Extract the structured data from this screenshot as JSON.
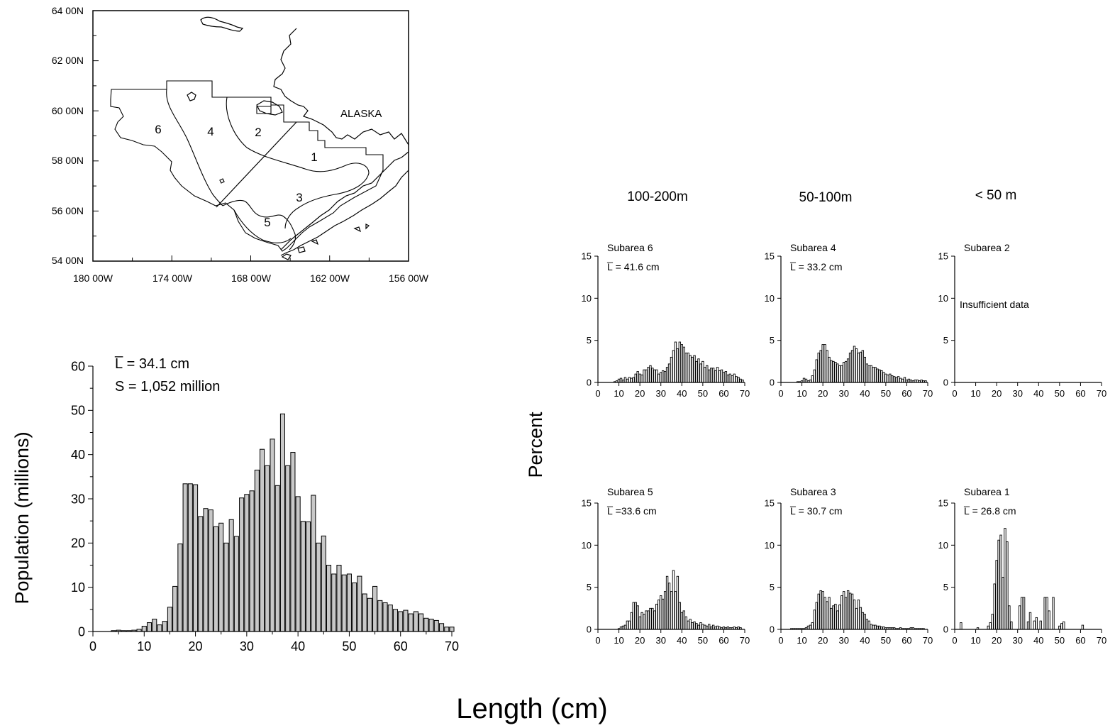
{
  "map": {
    "lat_labels": [
      "64 00N",
      "62 00N",
      "60 00N",
      "58 00N",
      "56 00N",
      "54 00N"
    ],
    "lon_labels": [
      "180 00W",
      "174 00W",
      "168 00W",
      "162 00W",
      "156 00W"
    ],
    "place_label": "ALASKA",
    "subarea_numbers": [
      "1",
      "2",
      "3",
      "4",
      "5",
      "6"
    ]
  },
  "main_chart": {
    "ylabel": "Population (millions)",
    "mean_label": "L̅ = 34.1 cm",
    "sum_label": "S = 1,052  million"
  },
  "depth_headers": [
    "100-200m",
    "50-100m",
    "< 50 m"
  ],
  "small_ylabel": "Percent",
  "xlabel": "Length (cm)",
  "panels": [
    {
      "title": "Subarea 6",
      "note": "L̅ = 41.6 cm"
    },
    {
      "title": "Subarea 4",
      "note": "L̅ = 33.2 cm"
    },
    {
      "title": "Subarea 2",
      "note": "Insufficient data"
    },
    {
      "title": "Subarea 5",
      "note": "L̅ =33.6  cm"
    },
    {
      "title": "Subarea 3",
      "note": "L̅ = 30.7 cm"
    },
    {
      "title": "Subarea 1",
      "note": "L̅ = 26.8 cm"
    }
  ],
  "colors": {
    "bar_fill": "#c8c8c8",
    "bar_stroke": "#000000",
    "small_bar_fill": "#ffffff"
  },
  "chart_data": [
    {
      "type": "bar",
      "title": "",
      "xlabel": "Length (cm)",
      "ylabel": "Population (millions)",
      "xlim": [
        0,
        70
      ],
      "ylim": [
        0,
        60
      ],
      "xticks": [
        0,
        10,
        20,
        30,
        40,
        50,
        60,
        70
      ],
      "yticks": [
        0,
        10,
        20,
        30,
        40,
        50,
        60
      ],
      "x": [
        4,
        5,
        6,
        7,
        8,
        9,
        10,
        11,
        12,
        13,
        14,
        15,
        16,
        17,
        18,
        19,
        20,
        21,
        22,
        23,
        24,
        25,
        26,
        27,
        28,
        29,
        30,
        31,
        32,
        33,
        34,
        35,
        36,
        37,
        38,
        39,
        40,
        41,
        42,
        43,
        44,
        45,
        46,
        47,
        48,
        49,
        50,
        51,
        52,
        53,
        54,
        55,
        56,
        57,
        58,
        59,
        60,
        61,
        62,
        63,
        64,
        65,
        66,
        67,
        68,
        69,
        70
      ],
      "values": [
        0.2,
        0.3,
        0.2,
        0.2,
        0.3,
        0.5,
        1.2,
        2.0,
        2.8,
        1.5,
        2.3,
        5.5,
        10.2,
        19.8,
        33.4,
        33.4,
        33.2,
        26.0,
        27.8,
        27.5,
        23.7,
        24.5,
        20.0,
        25.3,
        21.5,
        30.2,
        31.0,
        31.8,
        36.5,
        41.2,
        37.5,
        43.5,
        33.0,
        49.2,
        37.5,
        40.5,
        30.5,
        24.9,
        24.8,
        30.8,
        20.0,
        21.6,
        15.0,
        13.0,
        15.0,
        12.8,
        13.0,
        11.0,
        12.5,
        8.5,
        7.5,
        10.2,
        7.0,
        6.5,
        6.0,
        5.0,
        4.5,
        4.8,
        4.0,
        4.5,
        4.0,
        3.0,
        2.8,
        2.5,
        1.8,
        1.0,
        1.0
      ],
      "annotations": [
        "L̅ = 34.1 cm",
        "S = 1,052  million"
      ]
    },
    {
      "type": "bar",
      "title": "Subarea 6",
      "ylabel": "Percent",
      "xlabel": "Length (cm)",
      "xlim": [
        0,
        70
      ],
      "ylim": [
        0,
        15
      ],
      "x": [
        8,
        9,
        10,
        11,
        12,
        13,
        14,
        15,
        16,
        17,
        18,
        19,
        20,
        21,
        22,
        23,
        24,
        25,
        26,
        27,
        28,
        29,
        30,
        31,
        32,
        33,
        34,
        35,
        36,
        37,
        38,
        39,
        40,
        41,
        42,
        43,
        44,
        45,
        46,
        47,
        48,
        49,
        50,
        51,
        52,
        53,
        54,
        55,
        56,
        57,
        58,
        59,
        60,
        61,
        62,
        63,
        64,
        65,
        66,
        67,
        68,
        69
      ],
      "values": [
        0.1,
        0.2,
        0.4,
        0.5,
        0.3,
        0.6,
        0.4,
        0.6,
        0.5,
        0.6,
        1.0,
        1.3,
        1.0,
        0.9,
        1.5,
        1.5,
        1.8,
        2.0,
        1.7,
        1.5,
        1.5,
        1.0,
        1.2,
        1.4,
        1.3,
        1.8,
        2.2,
        3.0,
        3.8,
        4.8,
        4.0,
        4.8,
        4.5,
        4.2,
        3.5,
        3.5,
        3.2,
        3.0,
        3.2,
        2.5,
        2.8,
        2.2,
        2.5,
        1.8,
        2.0,
        1.5,
        1.7,
        1.7,
        1.4,
        1.8,
        1.4,
        1.5,
        1.2,
        1.3,
        0.9,
        1.0,
        0.8,
        1.0,
        0.7,
        0.6,
        0.4,
        0.3
      ],
      "annotations": [
        "L̅ = 41.6 cm"
      ]
    },
    {
      "type": "bar",
      "title": "Subarea 4",
      "ylabel": "Percent",
      "xlabel": "Length (cm)",
      "xlim": [
        0,
        70
      ],
      "ylim": [
        0,
        15
      ],
      "x": [
        8,
        9,
        10,
        11,
        12,
        13,
        14,
        15,
        16,
        17,
        18,
        19,
        20,
        21,
        22,
        23,
        24,
        25,
        26,
        27,
        28,
        29,
        30,
        31,
        32,
        33,
        34,
        35,
        36,
        37,
        38,
        39,
        40,
        41,
        42,
        43,
        44,
        45,
        46,
        47,
        48,
        49,
        50,
        51,
        52,
        53,
        54,
        55,
        56,
        57,
        58,
        59,
        60,
        61,
        62,
        63,
        64,
        65,
        66,
        67,
        68,
        69
      ],
      "values": [
        0.1,
        0.1,
        0.2,
        0.5,
        0.4,
        0.2,
        0.3,
        0.8,
        1.5,
        2.7,
        3.5,
        3.8,
        4.5,
        4.5,
        3.8,
        3.0,
        2.6,
        2.5,
        2.4,
        2.2,
        2.0,
        2.0,
        2.4,
        2.5,
        2.8,
        3.5,
        3.8,
        4.3,
        4.0,
        3.5,
        3.6,
        3.8,
        3.0,
        2.2,
        2.0,
        2.0,
        1.8,
        1.8,
        1.6,
        1.5,
        1.4,
        1.2,
        1.0,
        0.9,
        1.0,
        0.8,
        0.7,
        0.6,
        0.7,
        0.5,
        0.4,
        0.6,
        0.3,
        0.4,
        0.3,
        0.2,
        0.3,
        0.3,
        0.2,
        0.3,
        0.2,
        0.2
      ],
      "annotations": [
        "L̅ = 33.2 cm"
      ]
    },
    {
      "type": "bar",
      "title": "Subarea 2",
      "ylabel": "Percent",
      "xlabel": "Length (cm)",
      "xlim": [
        0,
        70
      ],
      "ylim": [
        0,
        15
      ],
      "x": [],
      "values": [],
      "annotations": [
        "Insufficient data"
      ]
    },
    {
      "type": "bar",
      "title": "Subarea 5",
      "ylabel": "Percent",
      "xlabel": "Length (cm)",
      "xlim": [
        0,
        70
      ],
      "ylim": [
        0,
        15
      ],
      "x": [
        10,
        11,
        12,
        13,
        14,
        15,
        16,
        17,
        18,
        19,
        20,
        21,
        22,
        23,
        24,
        25,
        26,
        27,
        28,
        29,
        30,
        31,
        32,
        33,
        34,
        35,
        36,
        37,
        38,
        39,
        40,
        41,
        42,
        43,
        44,
        45,
        46,
        47,
        48,
        49,
        50,
        51,
        52,
        53,
        54,
        55,
        56,
        57,
        58,
        59,
        60,
        61,
        62,
        63,
        64,
        65,
        66,
        67,
        68
      ],
      "values": [
        0.1,
        0.3,
        0.4,
        0.5,
        1.0,
        1.0,
        2.0,
        3.2,
        3.2,
        2.8,
        1.5,
        2.0,
        1.8,
        2.2,
        2.2,
        2.5,
        2.5,
        2.2,
        3.0,
        3.5,
        4.0,
        3.6,
        4.5,
        6.3,
        5.5,
        4.5,
        7.0,
        4.5,
        6.3,
        3.2,
        2.0,
        2.2,
        1.5,
        1.0,
        1.2,
        0.8,
        0.9,
        0.7,
        0.5,
        0.8,
        0.6,
        0.5,
        0.4,
        0.6,
        0.3,
        0.5,
        0.3,
        0.4,
        0.3,
        0.2,
        0.3,
        0.2,
        0.3,
        0.2,
        0.2,
        0.3,
        0.2,
        0.3,
        0.2
      ],
      "annotations": [
        "L̅ =33.6  cm"
      ]
    },
    {
      "type": "bar",
      "title": "Subarea 3",
      "ylabel": "Percent",
      "xlabel": "Length (cm)",
      "xlim": [
        0,
        70
      ],
      "ylim": [
        0,
        15
      ],
      "x": [
        5,
        6,
        7,
        8,
        9,
        10,
        11,
        12,
        13,
        14,
        15,
        16,
        17,
        18,
        19,
        20,
        21,
        22,
        23,
        24,
        25,
        26,
        27,
        28,
        29,
        30,
        31,
        32,
        33,
        34,
        35,
        36,
        37,
        38,
        39,
        40,
        41,
        42,
        43,
        44,
        45,
        46,
        47,
        48,
        49,
        50,
        51,
        52,
        53,
        54,
        55,
        56,
        57,
        58,
        59,
        60,
        61,
        62,
        63,
        64,
        65,
        66,
        67,
        68
      ],
      "values": [
        0.1,
        0.1,
        0.1,
        0.1,
        0.1,
        0.1,
        0.1,
        0.2,
        0.4,
        0.5,
        0.8,
        2.3,
        3.2,
        4.2,
        4.6,
        4.5,
        3.8,
        3.3,
        3.8,
        2.5,
        2.8,
        3.0,
        2.2,
        2.9,
        4.0,
        4.5,
        3.8,
        4.6,
        4.3,
        4.2,
        3.5,
        2.5,
        3.5,
        2.6,
        2.0,
        1.8,
        1.2,
        1.0,
        0.6,
        0.5,
        0.5,
        0.4,
        0.4,
        0.3,
        0.3,
        0.2,
        0.2,
        0.2,
        0.2,
        0.2,
        0.1,
        0.1,
        0.2,
        0.1,
        0.1,
        0.1,
        0.1,
        0.2,
        0.2,
        0.1,
        0.1,
        0.1,
        0.1,
        0.1
      ],
      "annotations": [
        "L̅ = 30.7 cm"
      ]
    },
    {
      "type": "bar",
      "title": "Subarea 1",
      "ylabel": "Percent",
      "xlabel": "Length (cm)",
      "xlim": [
        0,
        70
      ],
      "ylim": [
        0,
        15
      ],
      "x": [
        3,
        11,
        16,
        17,
        18,
        19,
        20,
        21,
        22,
        23,
        24,
        25,
        26,
        27,
        28,
        29,
        30,
        31,
        32,
        33,
        34,
        35,
        36,
        37,
        38,
        39,
        40,
        41,
        42,
        43,
        44,
        45,
        46,
        47,
        48,
        49,
        50,
        51,
        52,
        61
      ],
      "values": [
        0.8,
        0.2,
        0.4,
        0.8,
        1.8,
        5.4,
        8.2,
        10.6,
        11.2,
        6.2,
        12.0,
        10.4,
        2.8,
        0.9,
        0,
        0,
        0,
        2.8,
        3.8,
        3.8,
        0,
        0.9,
        2.0,
        0,
        1.0,
        1.4,
        0,
        1.0,
        0,
        3.8,
        3.8,
        2.2,
        0,
        3.8,
        0,
        0,
        0.4,
        0.7,
        0.9,
        0.5
      ],
      "annotations": [
        "L̅ = 26.8 cm"
      ]
    }
  ]
}
